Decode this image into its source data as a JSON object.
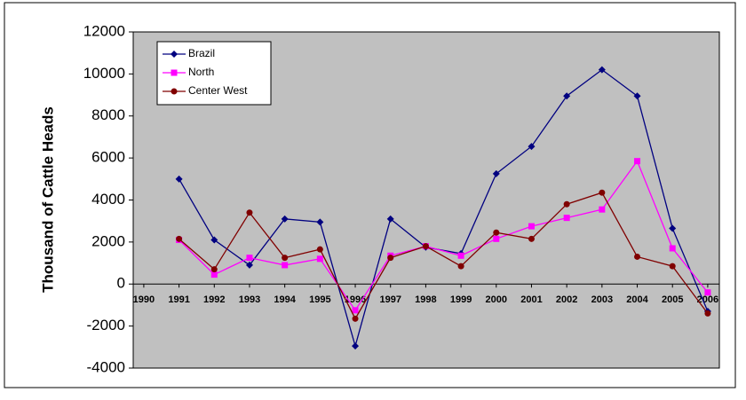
{
  "chart_data": {
    "type": "line",
    "y_label": "Thousand of Cattle Heads",
    "x": [
      1991,
      1992,
      1993,
      1994,
      1995,
      1996,
      1997,
      1998,
      1999,
      2000,
      2001,
      2002,
      2003,
      2004,
      2005,
      2006
    ],
    "series": [
      {
        "name": "Brazil",
        "color": "#000080",
        "marker": "diamond",
        "values": [
          5000,
          2100,
          900,
          3100,
          2950,
          -2950,
          3100,
          1750,
          1450,
          5250,
          6550,
          8950,
          10200,
          8950,
          2650,
          -1300
        ]
      },
      {
        "name": "North",
        "color": "#ff00ff",
        "marker": "square",
        "values": [
          2100,
          450,
          1250,
          900,
          1200,
          -1250,
          1350,
          1800,
          1350,
          2150,
          2750,
          3150,
          3550,
          5850,
          1700,
          -400
        ]
      },
      {
        "name": "Center West",
        "color": "#800000",
        "marker": "circle",
        "values": [
          2150,
          700,
          3400,
          1250,
          1650,
          -1650,
          1250,
          1800,
          850,
          2450,
          2150,
          3800,
          4350,
          1300,
          850,
          -1400
        ]
      }
    ],
    "xlim": [
      1989.7,
      2006.33
    ],
    "xticks": [
      1990,
      1991,
      1992,
      1993,
      1994,
      1995,
      1996,
      1997,
      1998,
      1999,
      2000,
      2001,
      2002,
      2003,
      2004,
      2005,
      2006
    ],
    "ylim": [
      -4000,
      12000
    ],
    "yticks": [
      -4000,
      -2000,
      0,
      2000,
      4000,
      6000,
      8000,
      10000,
      12000
    ],
    "legend": "upper-left",
    "plot_background": "#c0c0c0"
  }
}
